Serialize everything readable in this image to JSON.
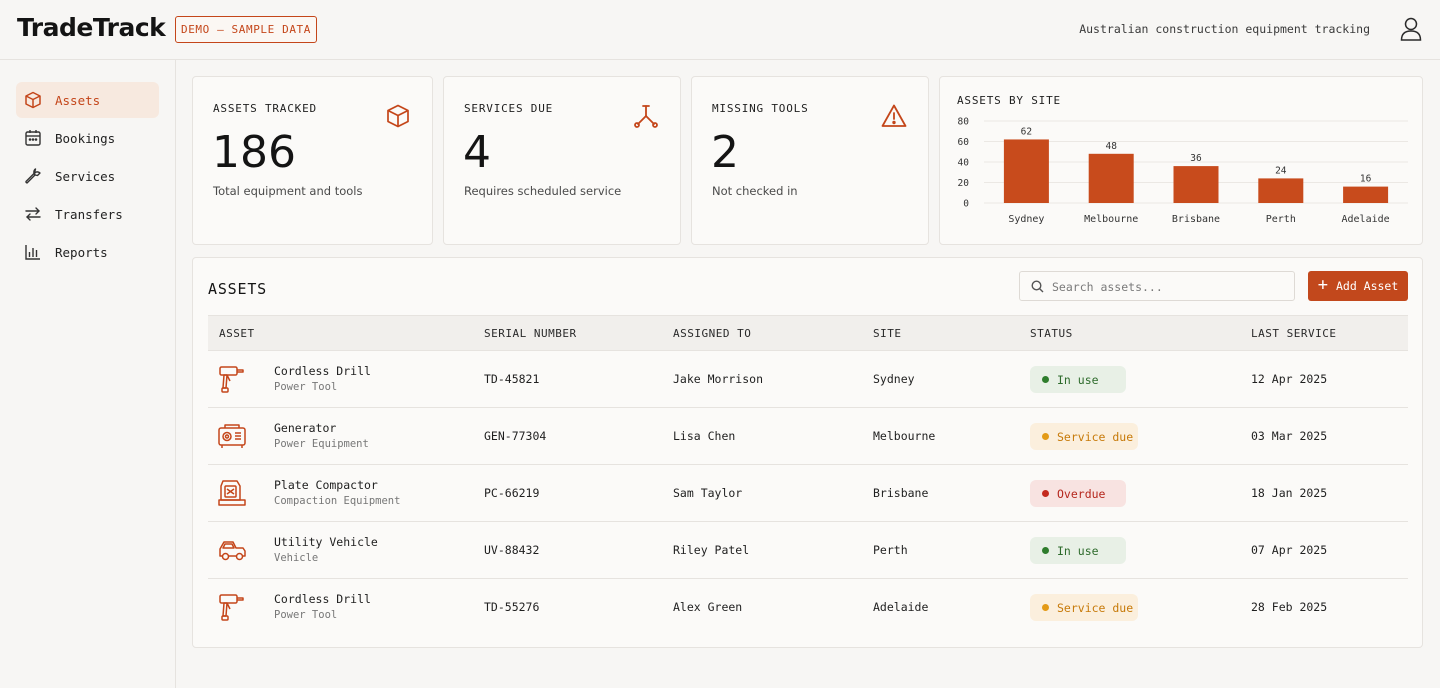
{
  "header": {
    "logo": "TradeTrack",
    "demo_badge": "DEMO — SAMPLE DATA",
    "tagline": "Australian construction equipment tracking",
    "user_icon": "user-icon"
  },
  "sidebar": {
    "items": [
      {
        "label": "Assets",
        "icon": "box-icon",
        "active": true
      },
      {
        "label": "Bookings",
        "icon": "calendar-icon",
        "active": false
      },
      {
        "label": "Services",
        "icon": "wrench-icon",
        "active": false
      },
      {
        "label": "Transfers",
        "icon": "transfer-arrows-icon",
        "active": false
      },
      {
        "label": "Reports",
        "icon": "bar-chart-icon",
        "active": false
      }
    ]
  },
  "stats": [
    {
      "title": "ASSETS TRACKED",
      "value": "186",
      "sub": "Total equipment and tools",
      "icon": "box-icon"
    },
    {
      "title": "SERVICES DUE",
      "value": "4",
      "sub": "Requires scheduled service",
      "icon": "wrench-tool-icon"
    },
    {
      "title": "MISSING TOOLS",
      "value": "2",
      "sub": "Not checked in",
      "icon": "warning-icon"
    }
  ],
  "chart_data": {
    "type": "bar",
    "title": "ASSETS BY SITE",
    "categories": [
      "Sydney",
      "Melbourne",
      "Brisbane",
      "Perth",
      "Adelaide"
    ],
    "values": [
      62,
      48,
      36,
      24,
      16
    ],
    "ylim": [
      0,
      80
    ],
    "yticks": [
      0,
      20,
      40,
      60,
      80
    ],
    "grid": true,
    "bar_color": "#c84b1c"
  },
  "assets": {
    "title": "ASSETS",
    "search_placeholder": "Search assets...",
    "add_label": "Add Asset",
    "columns": [
      "ASSET",
      "SERIAL NUMBER",
      "ASSIGNED TO",
      "SITE",
      "STATUS",
      "LAST SERVICE"
    ],
    "rows": [
      {
        "name": "Cordless Drill",
        "type": "Power Tool",
        "icon": "drill-icon",
        "serial": "TD-45821",
        "assigned": "Jake Morrison",
        "site": "Sydney",
        "status": "In use",
        "status_kind": "inuse",
        "last_service": "12 Apr 2025"
      },
      {
        "name": "Generator",
        "type": "Power Equipment",
        "icon": "generator-icon",
        "serial": "GEN-77304",
        "assigned": "Lisa Chen",
        "site": "Melbourne",
        "status": "Service due",
        "status_kind": "due",
        "last_service": "03 Mar 2025"
      },
      {
        "name": "Plate Compactor",
        "type": "Compaction Equipment",
        "icon": "compactor-icon",
        "serial": "PC-66219",
        "assigned": "Sam Taylor",
        "site": "Brisbane",
        "status": "Overdue",
        "status_kind": "overdue",
        "last_service": "18 Jan 2025"
      },
      {
        "name": "Utility Vehicle",
        "type": "Vehicle",
        "icon": "vehicle-icon",
        "serial": "UV-88432",
        "assigned": "Riley Patel",
        "site": "Perth",
        "status": "In use",
        "status_kind": "inuse",
        "last_service": "07 Apr 2025"
      },
      {
        "name": "Cordless Drill",
        "type": "Power Tool",
        "icon": "drill-icon",
        "serial": "TD-55276",
        "assigned": "Alex Green",
        "site": "Adelaide",
        "status": "Service due",
        "status_kind": "due",
        "last_service": "28 Feb 2025"
      }
    ]
  },
  "colors": {
    "accent": "#c4461a",
    "background": "#f7f6f4"
  }
}
